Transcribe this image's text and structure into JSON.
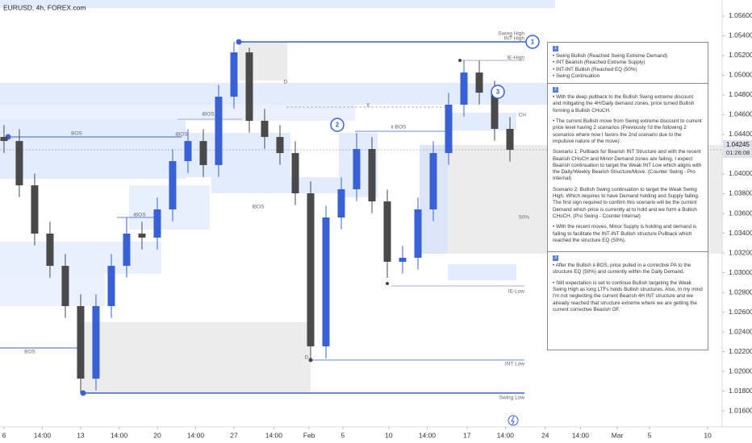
{
  "chart_data": {
    "type": "candlestick",
    "title": "EURUSD, 4h, FOREX.com",
    "x": [
      0,
      1,
      2,
      3,
      4,
      5,
      6,
      7,
      8,
      9,
      10,
      11,
      12,
      13,
      14,
      15,
      16,
      17,
      18,
      19,
      20,
      21,
      22,
      23,
      24,
      25,
      26,
      27,
      28,
      29,
      30,
      31,
      32,
      33
    ],
    "open": [
      1.04375,
      1.04334,
      1.03885,
      1.03396,
      1.03069,
      1.02661,
      1.01926,
      1.02661,
      1.03069,
      1.03396,
      1.03355,
      1.03641,
      1.0413,
      1.04334,
      1.0409,
      1.04783,
      1.05232,
      1.04539,
      1.04375,
      1.04212,
      1.03804,
      1.02253,
      1.03559,
      1.03845,
      1.04253,
      1.03722,
      1.0311,
      1.03151,
      1.03641,
      1.04212,
      1.04702,
      1.05028,
      1.04824,
      1.04457
    ],
    "high": [
      1.04495,
      1.04454,
      1.04005,
      1.03516,
      1.03189,
      1.02781,
      1.02781,
      1.03189,
      1.03559,
      1.03516,
      1.03761,
      1.0425,
      1.04454,
      1.04454,
      1.04903,
      1.05339,
      1.0528,
      1.04659,
      1.04495,
      1.04332,
      1.03924,
      1.03679,
      1.03965,
      1.04416,
      1.04373,
      1.03842,
      1.03271,
      1.03761,
      1.04332,
      1.04822,
      1.05151,
      1.05148,
      1.04944,
      1.04577
    ],
    "low": [
      1.04214,
      1.03765,
      1.03276,
      1.02949,
      1.02541,
      1.01779,
      1.01806,
      1.02541,
      1.02949,
      1.03235,
      1.03235,
      1.03521,
      1.0401,
      1.0397,
      1.0397,
      1.04663,
      1.04419,
      1.04255,
      1.04092,
      1.03684,
      1.02114,
      1.02133,
      1.03439,
      1.03725,
      1.03602,
      1.02947,
      1.0299,
      1.03031,
      1.03521,
      1.04092,
      1.04582,
      1.04704,
      1.04337,
      1.04125
    ],
    "close": [
      1.04334,
      1.03885,
      1.03396,
      1.03069,
      1.02661,
      1.01926,
      1.02661,
      1.03069,
      1.03396,
      1.03355,
      1.03641,
      1.0413,
      1.04334,
      1.0409,
      1.04783,
      1.05232,
      1.04539,
      1.04375,
      1.04212,
      1.03804,
      1.02253,
      1.03559,
      1.03845,
      1.04253,
      1.03722,
      1.0311,
      1.03151,
      1.03641,
      1.04212,
      1.04702,
      1.05028,
      1.04824,
      1.04457,
      1.04245
    ],
    "up_color": "#3861d8",
    "down_color": "#4a4a4a",
    "xlim": [
      -0.26,
      46.84
    ],
    "xticks": [
      {
        "value": 0,
        "label": "6"
      },
      {
        "value": 2.5,
        "label": "14:00"
      },
      {
        "value": 5,
        "label": "13"
      },
      {
        "value": 7.5,
        "label": "14:00"
      },
      {
        "value": 10,
        "label": "20"
      },
      {
        "value": 12.5,
        "label": "14:00"
      },
      {
        "value": 15,
        "label": "27"
      },
      {
        "value": 17.6,
        "label": "14:00"
      },
      {
        "value": 19.9,
        "label": "Feb"
      },
      {
        "value": 22.1,
        "label": "5"
      },
      {
        "value": 25.1,
        "label": "10"
      },
      {
        "value": 27.6,
        "label": "14:00"
      },
      {
        "value": 30.2,
        "label": "17"
      },
      {
        "value": 32.7,
        "label": "14:00"
      },
      {
        "value": 35.3,
        "label": "24"
      },
      {
        "value": 37.6,
        "label": "14:00"
      },
      {
        "value": 40,
        "label": "Mar"
      },
      {
        "value": 42.1,
        "label": "5"
      },
      {
        "value": 45.9,
        "label": "10"
      }
    ],
    "ylim": [
      1.01437,
      1.05763
    ],
    "yticks": [
      {
        "value": 1.056,
        "label": "1.05600"
      },
      {
        "value": 1.054,
        "label": "1.05400"
      },
      {
        "value": 1.052,
        "label": "1.05200"
      },
      {
        "value": 1.05,
        "label": "1.05000"
      },
      {
        "value": 1.048,
        "label": "1.04800"
      },
      {
        "value": 1.046,
        "label": "1.04600"
      },
      {
        "value": 1.044,
        "label": "1.04400"
      },
      {
        "value": 1.042,
        "label": "1.04200"
      },
      {
        "value": 1.04,
        "label": "1.04000"
      },
      {
        "value": 1.038,
        "label": "1.03800"
      },
      {
        "value": 1.036,
        "label": "1.03600"
      },
      {
        "value": 1.034,
        "label": "1.03400"
      },
      {
        "value": 1.032,
        "label": "1.03200"
      },
      {
        "value": 1.03,
        "label": "1.03000"
      },
      {
        "value": 1.028,
        "label": "1.02800"
      },
      {
        "value": 1.026,
        "label": "1.02600"
      },
      {
        "value": 1.024,
        "label": "1.02400"
      },
      {
        "value": 1.022,
        "label": "1.02200"
      },
      {
        "value": 1.02,
        "label": "1.02000"
      },
      {
        "value": 1.018,
        "label": "1.01800"
      },
      {
        "value": 1.016,
        "label": "1.01600"
      }
    ],
    "last_price": 1.04245,
    "countdown": "01:26:08",
    "annotations": [
      "Swing High",
      "INT High",
      "IE-High",
      "CH",
      "BOS",
      "iBOS",
      "iBOS",
      "iBOS",
      "iBOS",
      "ii-BOS",
      "X",
      "D",
      "D",
      "BOS",
      "IE-Low",
      "INT Low",
      "Swing Low",
      "50%"
    ],
    "markers": [
      "1",
      "2",
      "3"
    ]
  },
  "panel": {
    "sections": [
      {
        "number": "1",
        "paragraphs": [
          "• Swing Bullish (Reached Swing Extreme Demand)",
          "• INT Bearish (Reached Extreme Supply)",
          "• INT-INT Bullish (Reached EQ (50%)",
          "• Swing Continuation"
        ]
      },
      {
        "number": "2",
        "paragraphs": [
          "• With the deep pullback to the Bullish Swing extreme discount and mitigating the 4H/Daily demand zones, price turned Bullish forming a Bullish CHoCH.",
          "• The current Bullish move from Swing extreme discount to current price level having 2 scenarios (Previously I'd the following 2 scenarios where now I favors the 2nd scenario due to the impulsive nature of the move):",
          "Scenario 1: Pullback for Bearish INT Structure and with the recent Bearish CHoCH and Minor Demand zones are failing, I expect Bearish continuation to target the Weak INT Low which aligns with the Daily/Weekly Bearish Structure/Move. (Counter Swing - Pro Internal)",
          "Scenario 2: Bullish Swing continuation to target the Weak Swing High. Which requires to have Demand holding and Supply failing. The first sign required to confirm this scenario will be the current Demand which price is currently at to hold and we form a Bullish CHoCH. (Pro Swing - Counter Internal)",
          "• With the recent moves, Minor Supply is holding and demand is failing to facilitate the INT-INT Bullish structure Pullback which reached the structure EQ (50%)."
        ]
      },
      {
        "number": "3",
        "paragraphs": [
          "• After the Bullish ii-BOS, price pulled in a corrective PA to the structure EQ (50%) and currently within the Daily Demand.",
          "• Still expectation is set to continue Bullish targeting the Weak Swing High as long LTFs holds Bullish structures. Also, In my mind I'm not neglecting the current Bearish 4H INT structure and we already reached that structure extreme where we are getting the current corrective Bearish OF."
        ]
      }
    ]
  }
}
